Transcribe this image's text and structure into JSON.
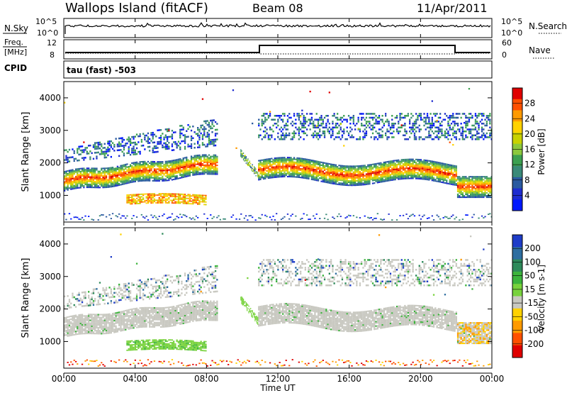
{
  "header": {
    "station": "Wallops Island (fitACF)",
    "beam": "Beam 08",
    "date": "11/Apr/2011"
  },
  "noise_panel": {
    "label": "N.Sky",
    "right_label": "N.Search",
    "left_ticks": [
      "10^5",
      "10^0"
    ],
    "right_ticks": [
      "10^5",
      "10^0"
    ]
  },
  "freq_panel": {
    "label_line1": "Freq.",
    "label_line2": "[MHz]",
    "right_label": "Nave",
    "left_ticks": [
      "12",
      "8"
    ],
    "right_ticks": [
      "60",
      "0"
    ]
  },
  "cpid_panel": {
    "label": "CPID",
    "text": "tau (fast) -503"
  },
  "x_axis": {
    "ticks": [
      "00:00",
      "04:00",
      "08:00",
      "12:00",
      "16:00",
      "20:00",
      "00:00"
    ],
    "label": "Time UT"
  },
  "chart_data": [
    {
      "type": "heatmap",
      "name": "power",
      "xlabel": "Time UT",
      "ylabel": "Slant Range [km]",
      "xlim": [
        0,
        24
      ],
      "ylim": [
        180,
        4500
      ],
      "y_ticks": [
        1000,
        2000,
        3000,
        4000
      ],
      "colorbar": {
        "label": "Power [dB]",
        "ticks": [
          "28",
          "24",
          "20",
          "16",
          "12",
          "8",
          "4"
        ],
        "colors": [
          "#e00000",
          "#ff5000",
          "#ff9a00",
          "#ffd200",
          "#c8d200",
          "#8cc83c",
          "#3ca050",
          "#3a8a78",
          "#2a5aa0",
          "#1e2cd0",
          "#0018ff"
        ]
      },
      "bands": [
        {
          "region": "main F-region echo",
          "x": [
            0.0,
            8.5
          ],
          "y": [
            1200,
            2000
          ],
          "level_db": "20-28"
        },
        {
          "region": "low range patch",
          "x": [
            3.5,
            8.0
          ],
          "y": [
            700,
            1000
          ],
          "level_db": "16-24"
        },
        {
          "region": "upper scatter",
          "x": [
            0.5,
            8.5
          ],
          "y": [
            2000,
            3300
          ],
          "level_db": "4-12"
        },
        {
          "region": "main F-region echo",
          "x": [
            10.8,
            22.0
          ],
          "y": [
            1300,
            2100
          ],
          "level_db": "20-28"
        },
        {
          "region": "upper scatter",
          "x": [
            11.0,
            22.0
          ],
          "y": [
            2700,
            3500
          ],
          "level_db": "4-12"
        },
        {
          "region": "low range echo",
          "x": [
            22.0,
            24.0
          ],
          "y": [
            900,
            1900
          ],
          "level_db": "20-28"
        }
      ]
    },
    {
      "type": "heatmap",
      "name": "velocity",
      "xlabel": "Time UT",
      "ylabel": "Slant Range [km]",
      "xlim": [
        0,
        24
      ],
      "ylim": [
        180,
        4500
      ],
      "y_ticks": [
        1000,
        2000,
        3000,
        4000
      ],
      "colorbar": {
        "label": "Velocity [m s-1]",
        "ticks": [
          "200",
          "100",
          "50",
          "15",
          "-15",
          "-50",
          "-100",
          "-200"
        ],
        "colors": [
          "#1e3cc8",
          "#2e6ea0",
          "#2e8a5a",
          "#3cb43c",
          "#78d23c",
          "#c8c8c0",
          "#ffd200",
          "#ff9a00",
          "#ff5000",
          "#e00000"
        ]
      },
      "bands": [
        {
          "region": "main echo (ground scatter)",
          "x": [
            0.0,
            8.5
          ],
          "y": [
            1200,
            2100
          ],
          "velocity": "-15 to 15"
        },
        {
          "region": "low range patch",
          "x": [
            3.5,
            8.0
          ],
          "y": [
            700,
            1000
          ],
          "velocity": "15 to 50"
        },
        {
          "region": "main echo (ground scatter)",
          "x": [
            10.8,
            22.0
          ],
          "y": [
            1300,
            2100
          ],
          "velocity": "-15 to 15"
        },
        {
          "region": "upper scatter",
          "x": [
            11.0,
            22.0
          ],
          "y": [
            2700,
            3500
          ],
          "velocity": "-15 to 15"
        },
        {
          "region": "low range echo",
          "x": [
            22.0,
            24.0
          ],
          "y": [
            900,
            1900
          ],
          "velocity": "-50 to -15"
        }
      ]
    }
  ]
}
